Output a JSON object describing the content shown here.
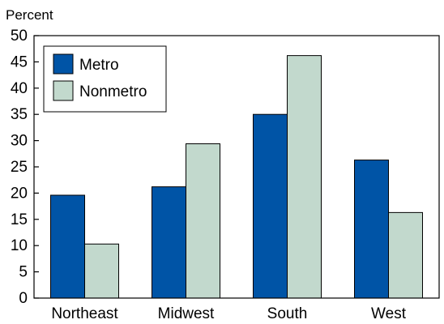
{
  "chart_data": {
    "type": "bar",
    "ylabel": "Percent",
    "xlabel": "",
    "ylim": [
      0,
      50
    ],
    "yticks": [
      0,
      5,
      10,
      15,
      20,
      25,
      30,
      35,
      40,
      45,
      50
    ],
    "categories": [
      "Northeast",
      "Midwest",
      "South",
      "West"
    ],
    "series": [
      {
        "name": "Metro",
        "color": "#0054a6",
        "values": [
          19.6,
          21.2,
          35.0,
          26.3
        ]
      },
      {
        "name": "Nonmetro",
        "color": "#c2d9cd",
        "values": [
          10.3,
          29.4,
          46.2,
          16.3
        ]
      }
    ],
    "legend_position": "top-left",
    "grid": false
  }
}
